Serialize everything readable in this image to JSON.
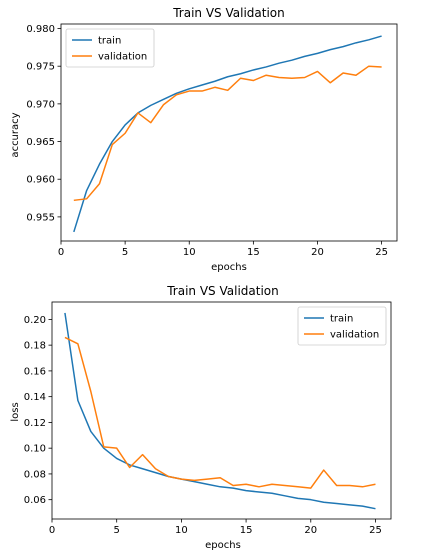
{
  "colors": {
    "train": "#1f77b4",
    "validation": "#ff7f0e",
    "axes": "#000000",
    "legend_border": "#cccccc"
  },
  "chart_data": [
    {
      "type": "line",
      "title": "Train VS Validation",
      "xlabel": "epochs",
      "ylabel": "accuracy",
      "xlim": [
        0,
        26.2
      ],
      "ylim": [
        0.9518,
        0.9806
      ],
      "xticks": [
        0,
        5,
        10,
        15,
        20,
        25
      ],
      "xtick_labels": [
        "0",
        "5",
        "10",
        "15",
        "20",
        "25"
      ],
      "yticks": [
        0.955,
        0.96,
        0.965,
        0.97,
        0.975,
        0.98
      ],
      "ytick_labels": [
        "0.955",
        "0.960",
        "0.965",
        "0.970",
        "0.975",
        "0.980"
      ],
      "grid": false,
      "legend_position": "top-left",
      "x": [
        1,
        2,
        3,
        4,
        5,
        6,
        7,
        8,
        9,
        10,
        11,
        12,
        13,
        14,
        15,
        16,
        17,
        18,
        19,
        20,
        21,
        22,
        23,
        24,
        25
      ],
      "series": [
        {
          "name": "train",
          "color_key": "train",
          "values": [
            0.953,
            0.9585,
            0.962,
            0.965,
            0.9672,
            0.9688,
            0.9698,
            0.9706,
            0.9714,
            0.972,
            0.9725,
            0.973,
            0.9736,
            0.974,
            0.9745,
            0.9749,
            0.9754,
            0.9758,
            0.9763,
            0.9767,
            0.9772,
            0.9776,
            0.9781,
            0.9785,
            0.979
          ]
        },
        {
          "name": "validation",
          "color_key": "validation",
          "values": [
            0.9572,
            0.9574,
            0.9594,
            0.9646,
            0.9661,
            0.9688,
            0.9675,
            0.9699,
            0.9712,
            0.9717,
            0.9717,
            0.9722,
            0.9718,
            0.9734,
            0.9731,
            0.9738,
            0.9735,
            0.9734,
            0.9735,
            0.9743,
            0.9728,
            0.9741,
            0.9738,
            0.975,
            0.9749
          ]
        }
      ]
    },
    {
      "type": "line",
      "title": "Train VS Validation",
      "xlabel": "epochs",
      "ylabel": "loss",
      "xlim": [
        0,
        26.2
      ],
      "ylim": [
        0.045,
        0.2135
      ],
      "xticks": [
        0,
        5,
        10,
        15,
        20,
        25
      ],
      "xtick_labels": [
        "0",
        "5",
        "10",
        "15",
        "20",
        "25"
      ],
      "yticks": [
        0.06,
        0.08,
        0.1,
        0.12,
        0.14,
        0.16,
        0.18,
        0.2
      ],
      "ytick_labels": [
        "0.06",
        "0.08",
        "0.10",
        "0.12",
        "0.14",
        "0.16",
        "0.18",
        "0.20"
      ],
      "grid": false,
      "legend_position": "top-right",
      "x": [
        1,
        2,
        3,
        4,
        5,
        6,
        7,
        8,
        9,
        10,
        11,
        12,
        13,
        14,
        15,
        16,
        17,
        18,
        19,
        20,
        21,
        22,
        23,
        24,
        25
      ],
      "series": [
        {
          "name": "train",
          "color_key": "train",
          "values": [
            0.205,
            0.137,
            0.113,
            0.1,
            0.092,
            0.087,
            0.084,
            0.081,
            0.078,
            0.076,
            0.074,
            0.072,
            0.07,
            0.069,
            0.067,
            0.066,
            0.065,
            0.063,
            0.061,
            0.06,
            0.058,
            0.057,
            0.056,
            0.055,
            0.053
          ]
        },
        {
          "name": "validation",
          "color_key": "validation",
          "values": [
            0.186,
            0.181,
            0.144,
            0.101,
            0.1,
            0.085,
            0.095,
            0.084,
            0.078,
            0.076,
            0.075,
            0.076,
            0.077,
            0.071,
            0.072,
            0.07,
            0.072,
            0.071,
            0.07,
            0.069,
            0.083,
            0.071,
            0.071,
            0.07,
            0.072
          ]
        }
      ]
    }
  ]
}
